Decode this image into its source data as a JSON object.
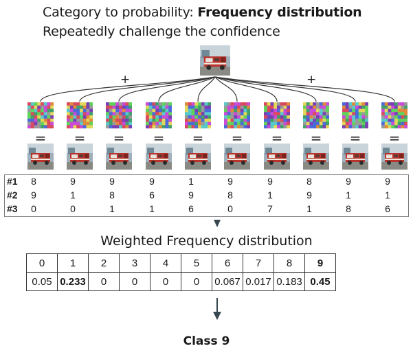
{
  "title": {
    "prefix": "Category to probability: ",
    "bold": "Frequency distribution",
    "subtitle": "Repeatedly challenge the confidence"
  },
  "symbols": {
    "plus": "+",
    "equals": "="
  },
  "predictions": {
    "row_labels": [
      "#1",
      "#2",
      "#3"
    ],
    "rows": [
      [
        "8",
        "9",
        "9",
        "9",
        "1",
        "9",
        "9",
        "8",
        "9",
        "9"
      ],
      [
        "9",
        "1",
        "8",
        "6",
        "9",
        "8",
        "1",
        "9",
        "1",
        "1"
      ],
      [
        "0",
        "0",
        "1",
        "1",
        "6",
        "0",
        "7",
        "1",
        "8",
        "6"
      ]
    ]
  },
  "distribution": {
    "title": "Weighted Frequency distribution",
    "classes": [
      "0",
      "1",
      "2",
      "3",
      "4",
      "5",
      "6",
      "7",
      "8",
      "9"
    ],
    "weights": [
      "0.05",
      "0.233",
      "0",
      "0",
      "0",
      "0",
      "0.067",
      "0.017",
      "0.183",
      "0.45"
    ],
    "bold_weight_indices": [
      1,
      9
    ],
    "bold_class_indices": [
      9
    ]
  },
  "result": "Class 9",
  "colors": {
    "arrow": "#37474f",
    "line": "#333333",
    "truck_red": "#b8342c",
    "noise_palette": [
      "#c94bd6",
      "#5fd35a",
      "#e2d75a",
      "#4a6bd9",
      "#d94a5e",
      "#59c9c9",
      "#9a9a9a",
      "#7a3fb5",
      "#e08a3c",
      "#3fa06b"
    ]
  }
}
